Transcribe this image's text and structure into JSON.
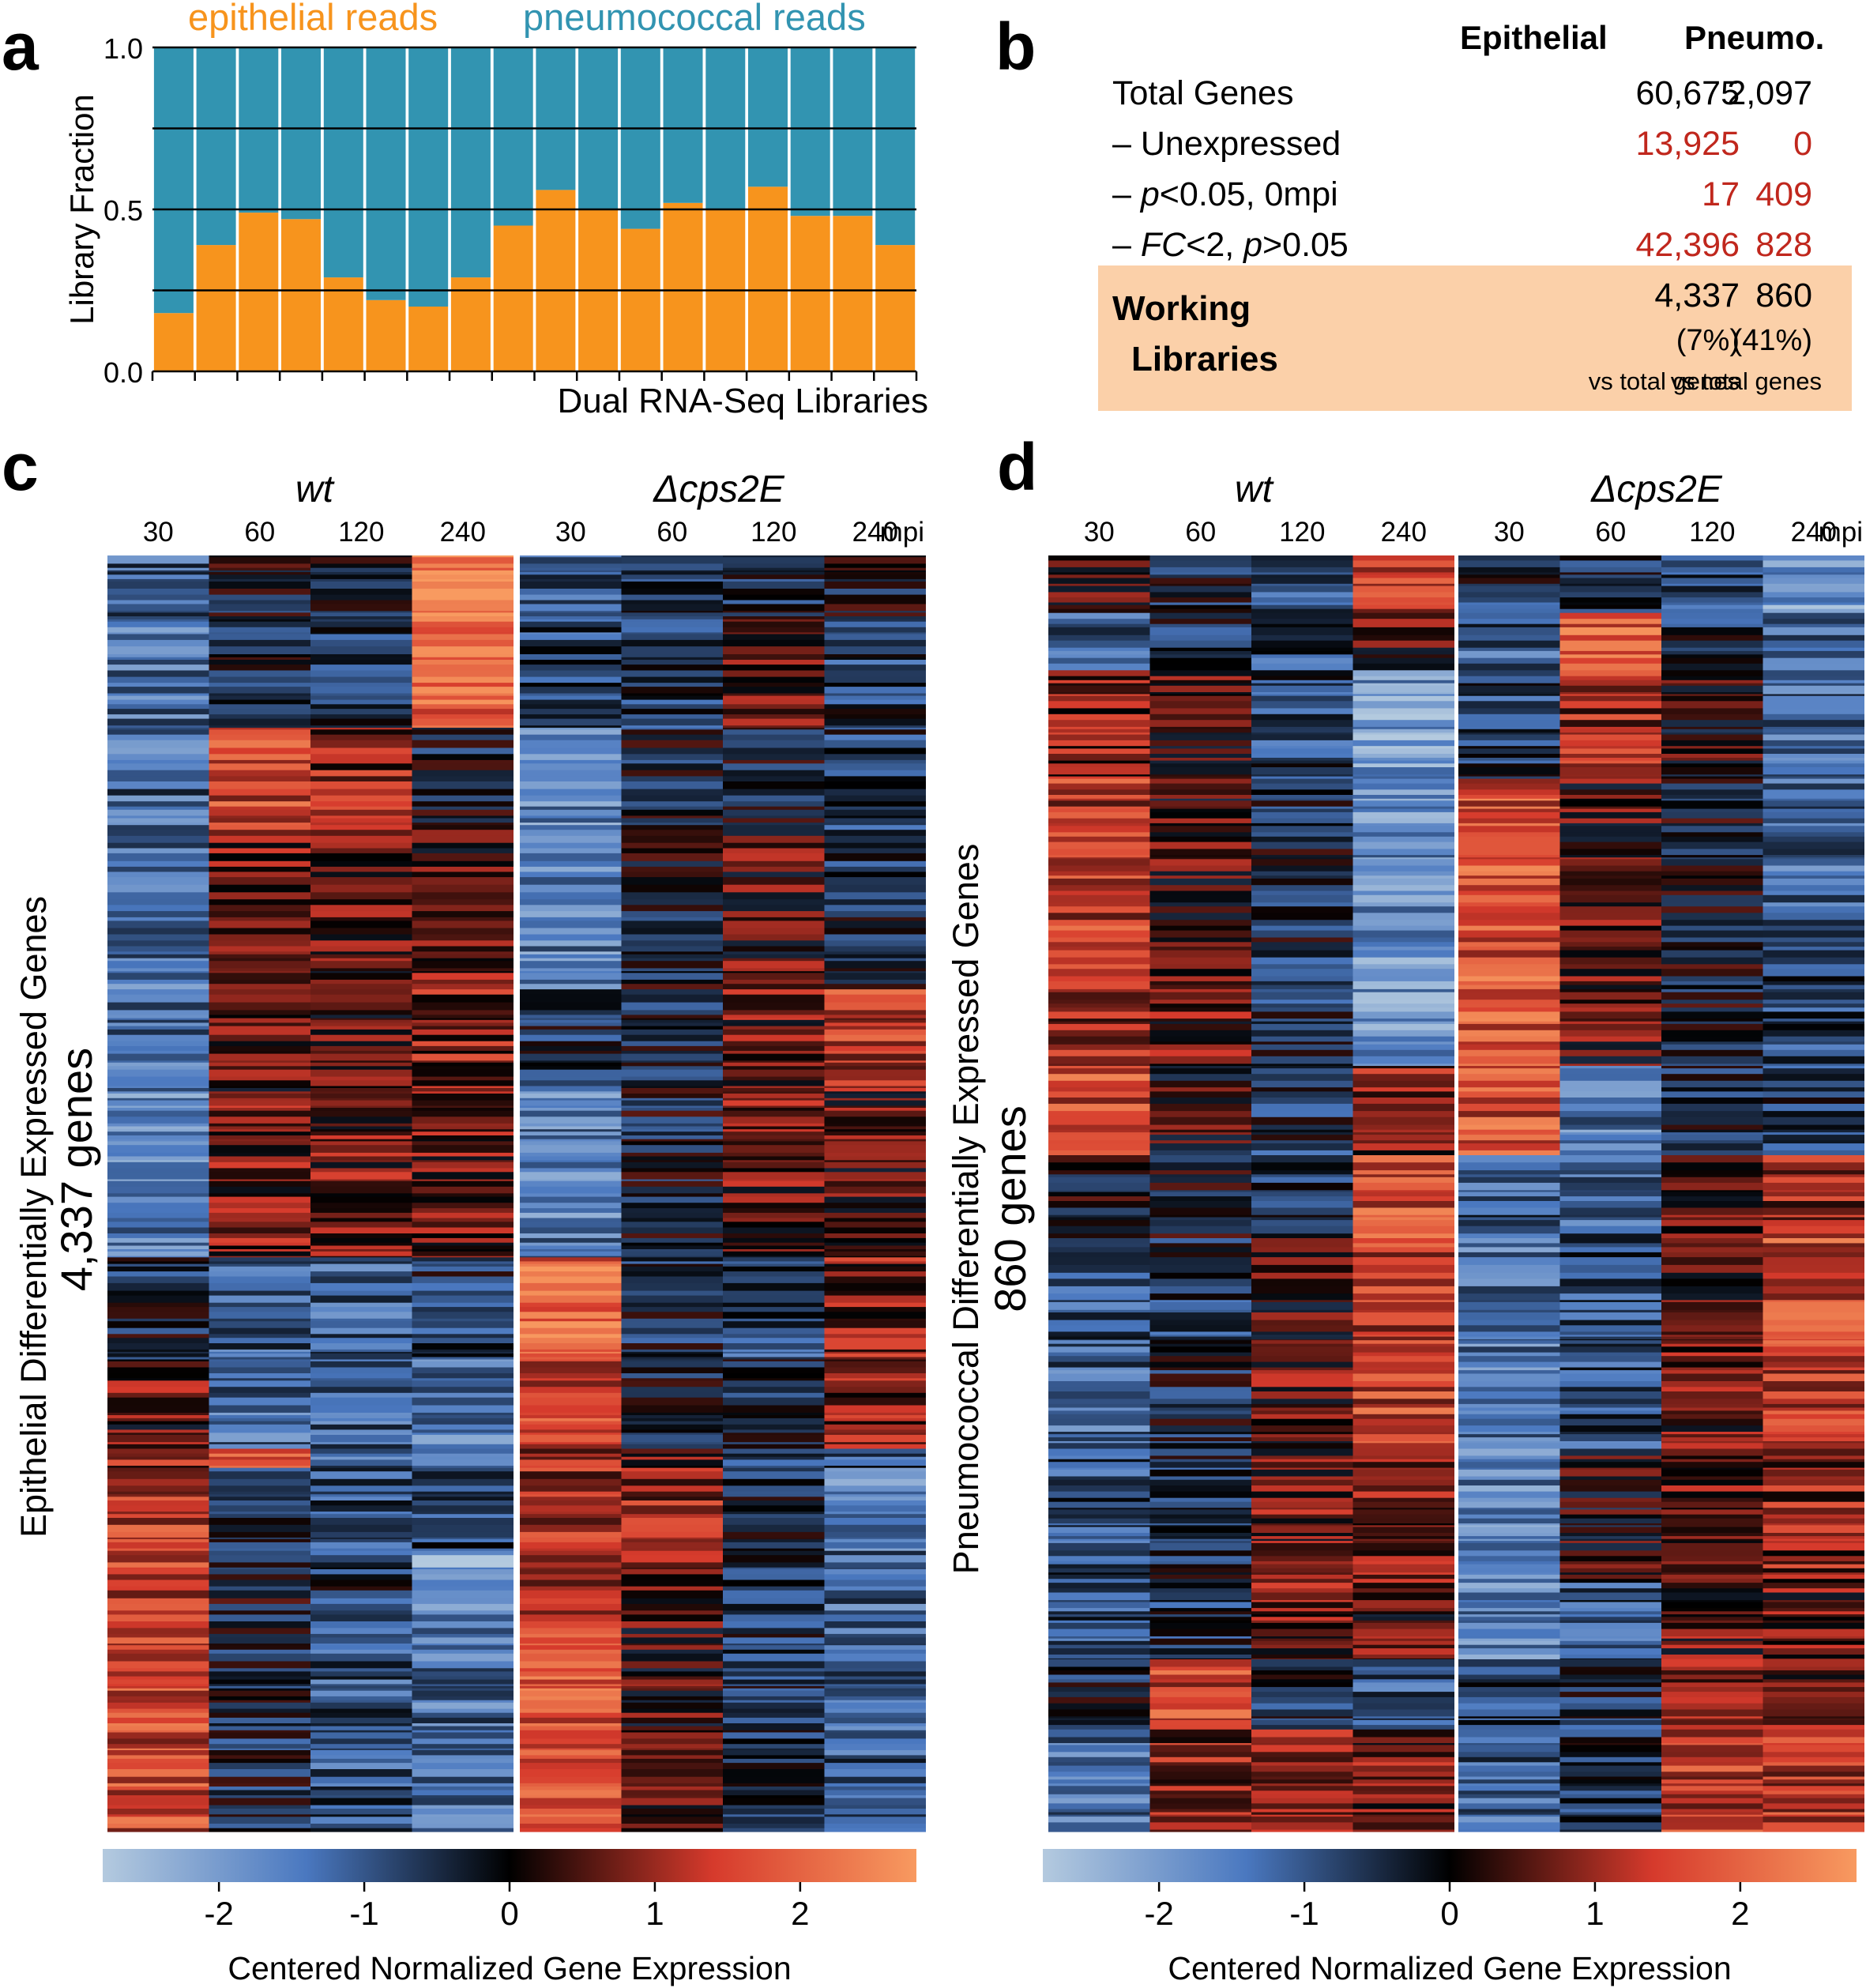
{
  "panel_labels": {
    "a": "a",
    "b": "b",
    "c": "c",
    "d": "d"
  },
  "chart_data": [
    {
      "panel": "a",
      "type": "bar",
      "stacked": true,
      "title_left": "epithelial reads",
      "title_right": "pneumococcal reads",
      "xlabel": "Dual RNA-Seq Libraries",
      "ylabel": "Library Fraction",
      "ylim": [
        0.0,
        1.0
      ],
      "yticks": [
        "0.0",
        "0.5",
        "1.0"
      ],
      "grid_values": [
        0.25,
        0.5,
        0.75
      ],
      "series": [
        {
          "name": "epithelial reads",
          "color": "#f7941d",
          "values": [
            0.18,
            0.39,
            0.49,
            0.47,
            0.29,
            0.22,
            0.2,
            0.29,
            0.45,
            0.56,
            0.5,
            0.44,
            0.52,
            0.5,
            0.57,
            0.48,
            0.48,
            0.39
          ]
        },
        {
          "name": "pneumococcal reads",
          "color": "#3294b1",
          "values": [
            0.82,
            0.61,
            0.51,
            0.53,
            0.71,
            0.78,
            0.8,
            0.71,
            0.55,
            0.44,
            0.5,
            0.56,
            0.48,
            0.5,
            0.43,
            0.52,
            0.52,
            0.61
          ]
        }
      ]
    },
    {
      "panel": "b",
      "type": "table",
      "columns": [
        "Epithelial",
        "Pneumo."
      ],
      "rows": [
        {
          "label": "Total Genes",
          "values": [
            "60,675",
            "2,097"
          ],
          "highlight": false
        },
        {
          "label_parts": [
            "– Unexpressed"
          ],
          "values": [
            "13,925",
            "0"
          ],
          "highlight": true
        },
        {
          "label_parts": [
            "– ",
            "p",
            "<0.05, 0mpi"
          ],
          "values": [
            "17",
            "409"
          ],
          "highlight": true
        },
        {
          "label_parts": [
            "– ",
            "FC",
            "<2, ",
            "p",
            ">0.05"
          ],
          "values": [
            "42,396",
            "828"
          ],
          "highlight": true
        }
      ],
      "working": {
        "label_line1": "Working",
        "label_line2": "Libraries",
        "values": [
          "4,337",
          "860"
        ],
        "pct": [
          "(7%)",
          "(41%)"
        ],
        "note": "vs total genes"
      }
    },
    {
      "panel": "c",
      "type": "heatmap",
      "ylabel_line1": "Epithelial Differentially Expressed Genes",
      "ylabel_line2": "4,337 genes",
      "groups": [
        "wt",
        "Δcps2E"
      ],
      "columns": [
        "30",
        "60",
        "120",
        "240"
      ],
      "unit_label": "mpi",
      "segments": [
        {
          "fraction": 0.05,
          "values": [
            -1.1,
            -0.2,
            -0.4,
            2.6,
            -1.0,
            -0.6,
            -0.5,
            -0.3
          ]
        },
        {
          "fraction": 0.085,
          "values": [
            -1.3,
            -0.4,
            -0.6,
            2.0,
            -0.8,
            -0.6,
            0.6,
            -0.7
          ]
        },
        {
          "fraction": 0.08,
          "values": [
            -1.2,
            1.5,
            0.9,
            -0.3,
            -1.7,
            -0.3,
            -0.2,
            -0.6
          ]
        },
        {
          "fraction": 0.125,
          "values": [
            -1.4,
            0.7,
            0.5,
            0.5,
            -1.6,
            -0.2,
            0.4,
            -0.5
          ]
        },
        {
          "fraction": 0.08,
          "values": [
            -1.3,
            0.4,
            0.4,
            0.9,
            -0.5,
            -0.3,
            0.6,
            1.4
          ]
        },
        {
          "fraction": 0.13,
          "values": [
            -1.6,
            0.7,
            0.6,
            0.6,
            -1.5,
            -0.3,
            0.6,
            0.5
          ]
        },
        {
          "fraction": 0.08,
          "values": [
            -0.4,
            -1.0,
            -1.2,
            -0.6,
            1.9,
            -0.5,
            -0.9,
            0.8
          ]
        },
        {
          "fraction": 0.07,
          "values": [
            0.5,
            -1.3,
            -1.1,
            -1.5,
            1.5,
            -0.4,
            -0.3,
            0.9
          ]
        },
        {
          "fraction": 0.015,
          "values": [
            0.9,
            2.1,
            -1.2,
            -0.9,
            1.0,
            0.5,
            -0.5,
            -0.8
          ]
        },
        {
          "fraction": 0.065,
          "values": [
            1.3,
            -0.4,
            -0.9,
            -0.8,
            1.2,
            1.0,
            -0.5,
            -1.6
          ]
        },
        {
          "fraction": 0.05,
          "values": [
            1.4,
            -0.2,
            -0.6,
            -2.2,
            0.9,
            0.6,
            -0.6,
            -1.2
          ]
        },
        {
          "fraction": 0.17,
          "values": [
            1.6,
            -0.4,
            -1.0,
            -1.3,
            1.7,
            0.3,
            -0.5,
            -1.0
          ]
        }
      ],
      "colorbar": {
        "ticks": [
          "-2",
          "-1",
          "0",
          "1",
          "2"
        ],
        "range": [
          -2.8,
          2.8
        ],
        "label": "Centered Normalized Gene Expression"
      }
    },
    {
      "panel": "d",
      "type": "heatmap",
      "ylabel_line1": "Pneumococcal Differentially Expressed Genes",
      "ylabel_line2": "860 genes",
      "groups": [
        "wt",
        "Δcps2E"
      ],
      "columns": [
        "30",
        "60",
        "120",
        "240"
      ],
      "unit_label": "mpi",
      "segments": [
        {
          "fraction": 0.045,
          "values": [
            0.5,
            -0.4,
            -0.8,
            1.4,
            -0.5,
            -0.6,
            -0.7,
            -2.0
          ]
        },
        {
          "fraction": 0.045,
          "values": [
            -1.0,
            -0.5,
            -0.9,
            0.4,
            -1.1,
            1.8,
            -0.5,
            -1.4
          ]
        },
        {
          "fraction": 0.085,
          "values": [
            0.8,
            0.4,
            -0.8,
            -1.9,
            -0.7,
            1.1,
            0.2,
            -1.2
          ]
        },
        {
          "fraction": 0.14,
          "values": [
            1.4,
            0.3,
            -0.4,
            -1.7,
            1.7,
            0.4,
            -0.1,
            -1.2
          ]
        },
        {
          "fraction": 0.085,
          "values": [
            1.1,
            0.5,
            -0.6,
            -1.8,
            1.8,
            0.4,
            -0.2,
            -0.8
          ]
        },
        {
          "fraction": 0.07,
          "values": [
            1.6,
            0.2,
            -0.6,
            0.8,
            1.7,
            -1.5,
            -0.3,
            -0.7
          ]
        },
        {
          "fraction": 0.065,
          "values": [
            0.0,
            -0.2,
            -0.5,
            1.7,
            -1.0,
            -1.1,
            0.3,
            0.9
          ]
        },
        {
          "fraction": 0.08,
          "values": [
            -1.0,
            -0.6,
            0.3,
            1.3,
            -1.4,
            -0.8,
            0.4,
            1.6
          ]
        },
        {
          "fraction": 0.085,
          "values": [
            -1.2,
            -0.4,
            0.5,
            1.5,
            -1.5,
            -0.9,
            0.6,
            1.4
          ]
        },
        {
          "fraction": 0.105,
          "values": [
            -0.9,
            -0.5,
            0.6,
            0.9,
            -1.6,
            0.1,
            0.6,
            0.9
          ]
        },
        {
          "fraction": 0.06,
          "values": [
            -0.8,
            -0.6,
            0.7,
            0.4,
            -1.5,
            -1.0,
            0.5,
            0.6
          ]
        },
        {
          "fraction": 0.055,
          "values": [
            -0.4,
            1.6,
            -0.4,
            -1.1,
            -0.7,
            -0.5,
            0.8,
            0.7
          ]
        },
        {
          "fraction": 0.08,
          "values": [
            -1.3,
            0.9,
            1.0,
            0.7,
            -1.1,
            -0.6,
            1.4,
            1.3
          ]
        }
      ],
      "colorbar": {
        "ticks": [
          "-2",
          "-1",
          "0",
          "1",
          "2"
        ],
        "range": [
          -2.8,
          2.8
        ],
        "label": "Centered Normalized Gene Expression"
      }
    }
  ]
}
